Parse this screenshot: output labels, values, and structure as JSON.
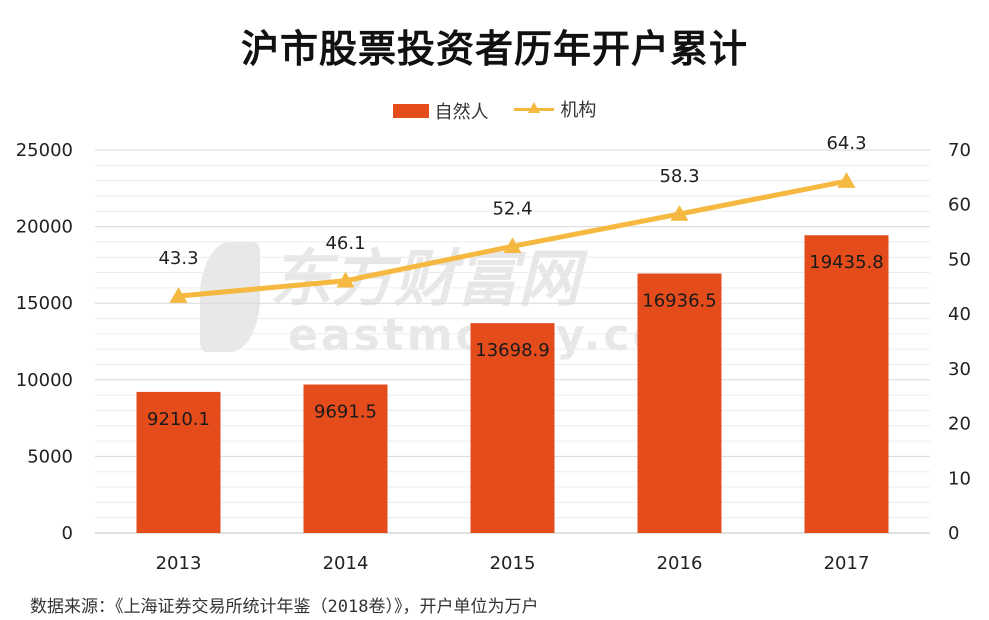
{
  "chart_data": {
    "type": "bar",
    "title": "沪市股票投资者历年开户累计",
    "categories": [
      "2013",
      "2014",
      "2015",
      "2016",
      "2017"
    ],
    "series": [
      {
        "name": "自然人",
        "type": "bar",
        "axis": "left",
        "color": "#e44c1c",
        "values": [
          9210.1,
          9691.5,
          13698.9,
          16936.5,
          19435.8
        ],
        "labels": [
          "9210.1",
          "9691.5",
          "13698.9",
          "16936.5",
          "19435.8"
        ]
      },
      {
        "name": "机构",
        "type": "line",
        "axis": "right",
        "color": "#f5b942",
        "marker": "triangle",
        "values": [
          43.3,
          46.1,
          52.4,
          58.3,
          64.3
        ],
        "labels": [
          "43.3",
          "46.1",
          "52.4",
          "58.3",
          "64.3"
        ]
      }
    ],
    "y_left": {
      "min": 0,
      "max": 25000,
      "ticks": [
        "0",
        "5000",
        "10000",
        "15000",
        "20000",
        "25000"
      ]
    },
    "y_right": {
      "min": 0,
      "max": 70,
      "ticks": [
        "0",
        "10",
        "20",
        "30",
        "40",
        "50",
        "60",
        "70"
      ]
    },
    "grid": true,
    "legend_position": "top-center",
    "source_note": "数据来源：《上海证券交易所统计年鉴（2018卷）》，开户单位为万户"
  },
  "watermark": {
    "cn": "东方财富网",
    "en": "eastmoney.com"
  }
}
